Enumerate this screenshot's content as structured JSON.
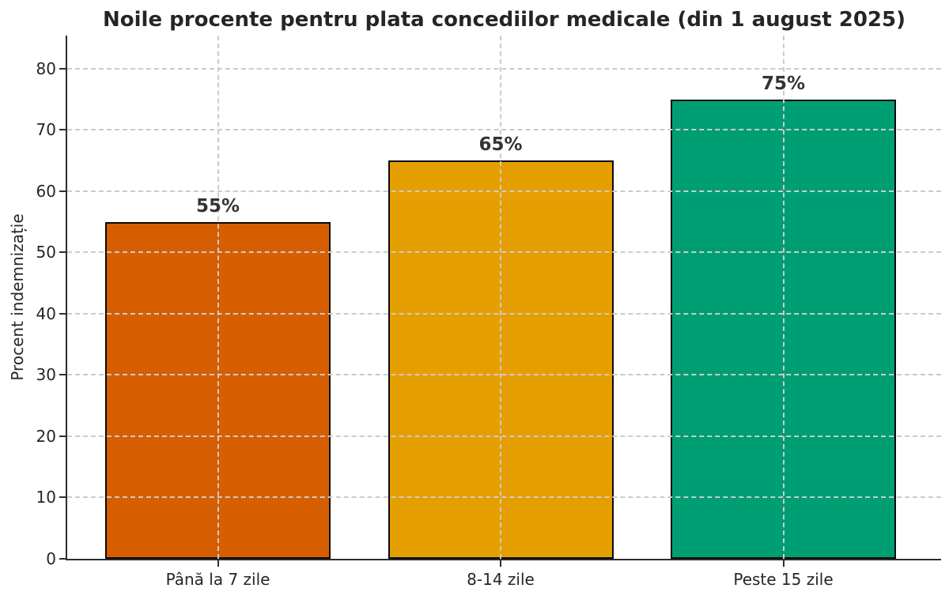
{
  "chart_data": {
    "type": "bar",
    "title": "Noile procente pentru plata concediilor medicale (din 1 august 2025)",
    "xlabel": "",
    "ylabel": "Procent indemnizație",
    "categories": [
      "Până la 7 zile",
      "8-14 zile",
      "Peste 15 zile"
    ],
    "values": [
      55,
      65,
      75
    ],
    "bar_labels": [
      "55%",
      "65%",
      "75%"
    ],
    "bar_colors": [
      "#D55E00",
      "#E69F00",
      "#009E73"
    ],
    "bar_edge_color": "#000000",
    "yticks": [
      0,
      10,
      20,
      30,
      40,
      50,
      60,
      70,
      80
    ],
    "ylim": [
      0,
      85.4
    ],
    "grid": true,
    "grid_style": "dashed",
    "grid_color": "#cccccc",
    "grid_above_bars": true,
    "legend_position": "none",
    "text_color": "#262626",
    "axis_color": "#2e2e2e"
  }
}
